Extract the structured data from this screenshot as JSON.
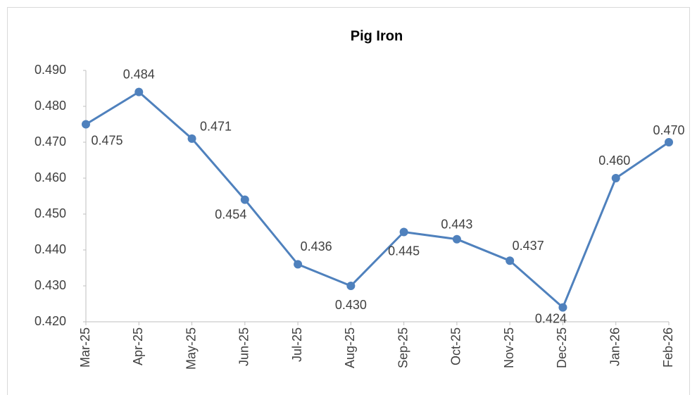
{
  "chart_data": {
    "type": "line",
    "title": "Pig Iron",
    "categories": [
      "Mar-25",
      "Apr-25",
      "May-25",
      "Jun-25",
      "Jul-25",
      "Aug-25",
      "Sep-25",
      "Oct-25",
      "Nov-25",
      "Dec-25",
      "Jan-26",
      "Feb-26"
    ],
    "values": [
      0.475,
      0.484,
      0.471,
      0.454,
      0.436,
      0.43,
      0.445,
      0.443,
      0.437,
      0.424,
      0.46,
      0.47
    ],
    "value_labels": [
      "0.475",
      "0.484",
      "0.471",
      "0.454",
      "0.436",
      "0.430",
      "0.445",
      "0.443",
      "0.437",
      "0.424",
      "0.460",
      "0.470"
    ],
    "color": "#4f81bd",
    "ylim": [
      0.42,
      0.49
    ],
    "yticks": [
      {
        "value": 0.42,
        "label": "0.420"
      },
      {
        "value": 0.43,
        "label": "0.430"
      },
      {
        "value": 0.44,
        "label": "0.440"
      },
      {
        "value": 0.45,
        "label": "0.450"
      },
      {
        "value": 0.46,
        "label": "0.460"
      },
      {
        "value": 0.47,
        "label": "0.470"
      },
      {
        "value": 0.48,
        "label": "0.480"
      },
      {
        "value": 0.49,
        "label": "0.490"
      }
    ],
    "grid": false
  }
}
